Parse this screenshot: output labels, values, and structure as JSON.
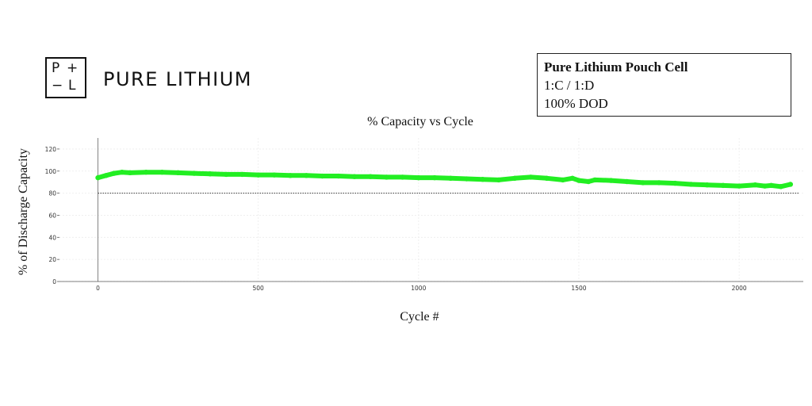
{
  "brand": {
    "logo_letters": [
      "P",
      "+",
      "−",
      "L"
    ],
    "name": "PURE LITHIUM"
  },
  "info_box": {
    "line1": "Pure Lithium Pouch Cell",
    "line2": "1:C / 1:D",
    "line3": "100% DOD"
  },
  "chart_data": {
    "type": "scatter",
    "title": "% Capacity vs Cycle",
    "xlabel": "Cycle #",
    "ylabel": "% of Discharge Capacity",
    "xlim": [
      -120,
      2200
    ],
    "ylim": [
      0,
      130
    ],
    "x_ticks": [
      0,
      500,
      1000,
      1500,
      2000
    ],
    "y_ticks": [
      0,
      20,
      40,
      60,
      80,
      100,
      120
    ],
    "grid": true,
    "reference_line": {
      "y": 80,
      "style": "dotted"
    },
    "series": [
      {
        "color": "#22ee22",
        "x": [
          0,
          25,
          50,
          75,
          100,
          150,
          200,
          250,
          300,
          350,
          400,
          450,
          500,
          550,
          600,
          650,
          700,
          750,
          800,
          850,
          900,
          950,
          1000,
          1050,
          1100,
          1150,
          1200,
          1250,
          1300,
          1350,
          1400,
          1450,
          1480,
          1500,
          1530,
          1550,
          1600,
          1650,
          1700,
          1750,
          1800,
          1850,
          1900,
          1950,
          2000,
          2050,
          2080,
          2100,
          2130,
          2160
        ],
        "y": [
          94,
          96,
          98,
          99,
          98.5,
          99,
          99,
          98.5,
          98,
          97.5,
          97,
          97,
          96.5,
          96.5,
          96,
          96,
          95.5,
          95.5,
          95,
          95,
          94.5,
          94.5,
          94,
          94,
          93.5,
          93,
          92.5,
          92,
          93.5,
          94.5,
          93.5,
          92,
          93.5,
          91.5,
          90.5,
          92,
          91.5,
          90.5,
          89.5,
          89.5,
          89,
          88,
          87.5,
          87,
          86.5,
          87.5,
          86.5,
          87,
          86,
          88
        ]
      }
    ]
  }
}
